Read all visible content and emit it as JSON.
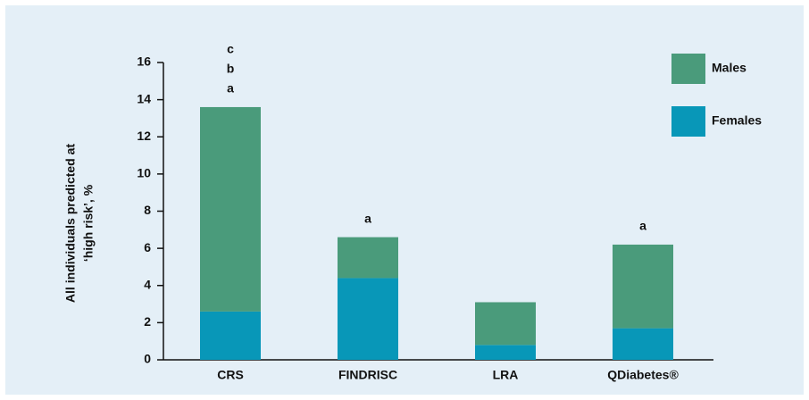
{
  "chart_data": {
    "type": "stacked_bar",
    "categories": [
      "CRS",
      "FINDRISC",
      "LRA",
      "QDiabetes®"
    ],
    "series": [
      {
        "name": "Females",
        "color": "#0897b8",
        "values": [
          2.6,
          4.4,
          0.8,
          1.7
        ]
      },
      {
        "name": "Males",
        "color": "#4a9b7b",
        "values": [
          11.0,
          2.2,
          2.3,
          4.5
        ]
      }
    ],
    "annotations": [
      [
        "a",
        "b",
        "c"
      ],
      [
        "a"
      ],
      [],
      [
        "a"
      ]
    ],
    "ylabel": [
      "All individuals predicted at",
      "‘high risk’, %"
    ],
    "ylim": [
      0,
      16
    ],
    "yticks": [
      0,
      2,
      4,
      6,
      8,
      10,
      12,
      14,
      16
    ],
    "legend": "upper right"
  }
}
